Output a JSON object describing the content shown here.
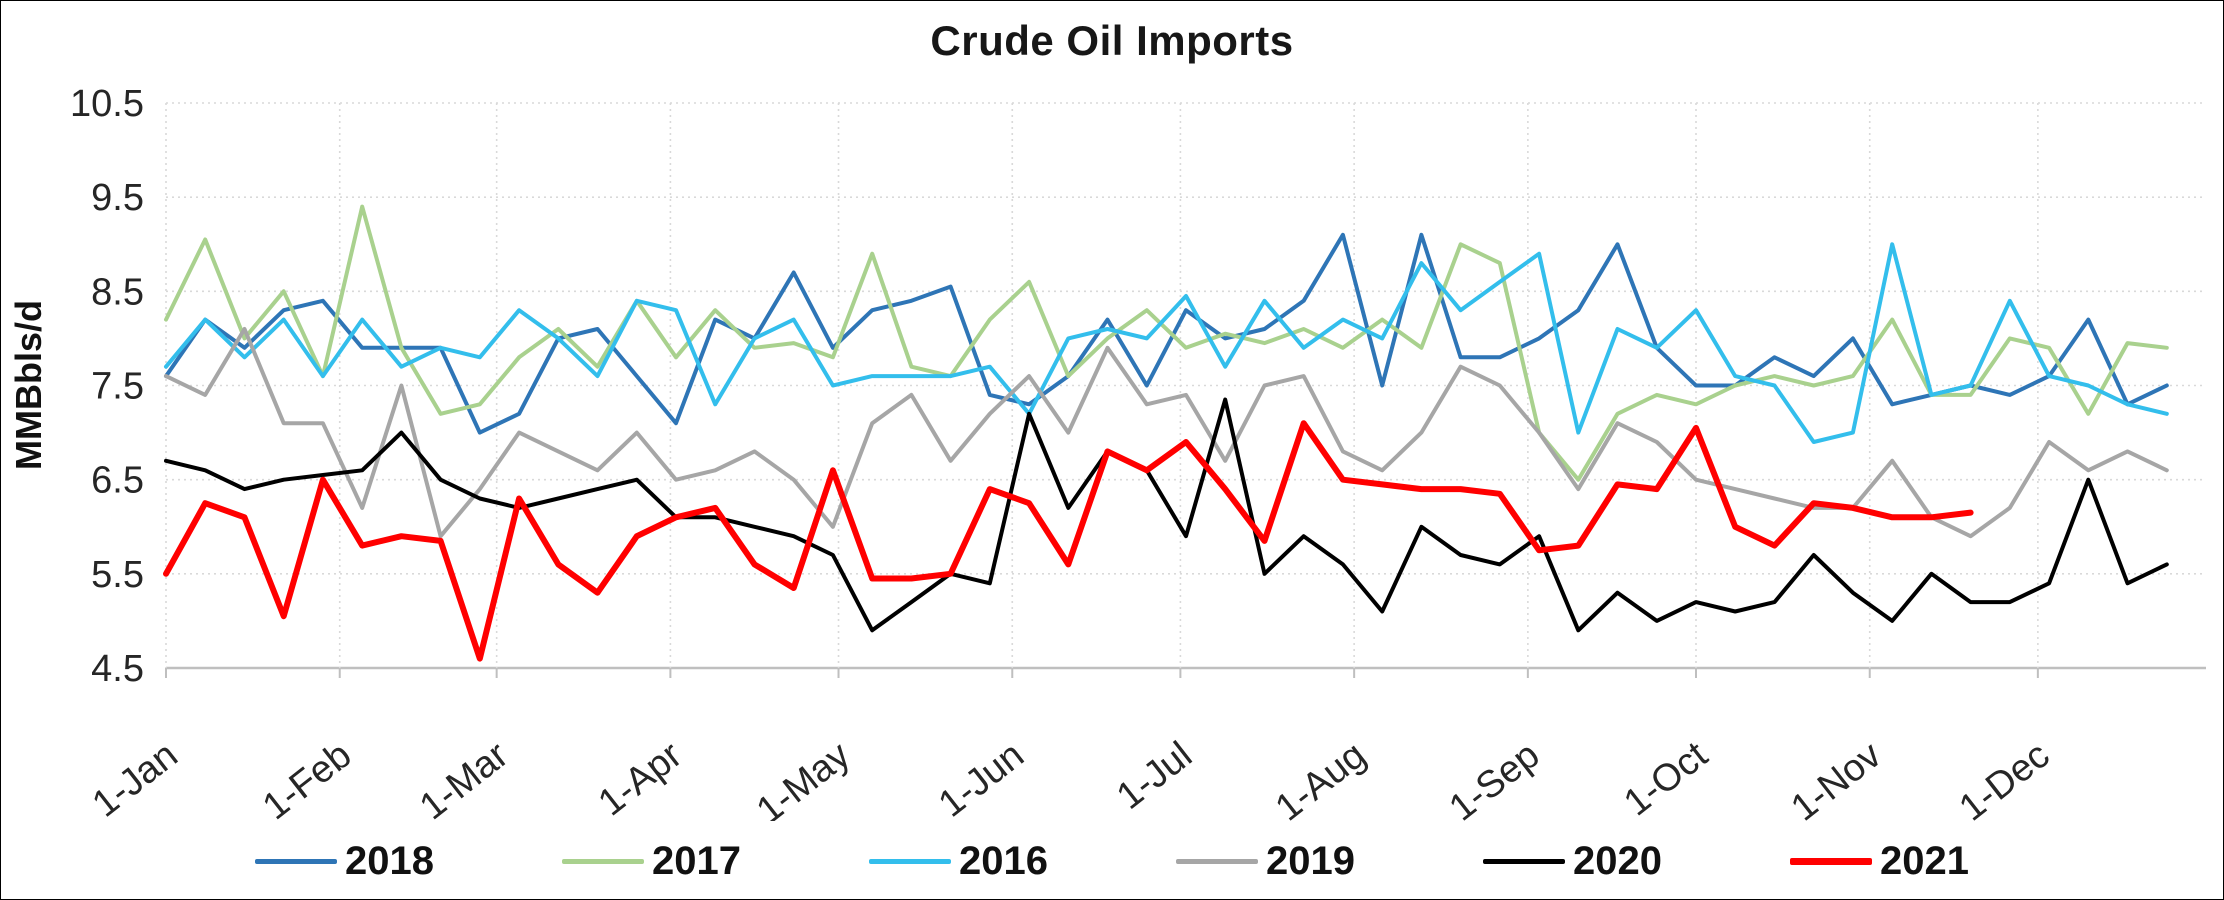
{
  "chart_data": {
    "type": "line",
    "title": "Crude Oil Imports",
    "ylabel": "MMBbls/d",
    "xlabel": "",
    "ylim": [
      4.5,
      10.5
    ],
    "yticks": [
      4.5,
      5.5,
      6.5,
      7.5,
      8.5,
      9.5,
      10.5
    ],
    "ytick_labels": [
      "4.5",
      "5.5",
      "6.5",
      "7.5",
      "8.5",
      "9.5",
      "10.5"
    ],
    "x_tick_labels": [
      "1-Jan",
      "1-Feb",
      "1-Mar",
      "1-Apr",
      "1-May",
      "1-Jun",
      "1-Jul",
      "1-Aug",
      "1-Sep",
      "1-Oct",
      "1-Nov",
      "1-Dec"
    ],
    "x_tick_days": [
      0,
      31,
      59,
      90,
      120,
      151,
      181,
      212,
      243,
      273,
      304,
      334
    ],
    "days_span": 364,
    "points_interval_days": 7,
    "grid": true,
    "gridline_color": "#D9D9D9",
    "axis_line_color": "#BFBFBF",
    "legend_position": "bottom",
    "series": [
      {
        "name": "2018",
        "color": "#2E75B6",
        "width": 4,
        "values": [
          7.6,
          8.2,
          7.9,
          8.3,
          8.4,
          7.9,
          7.9,
          7.9,
          7.0,
          7.2,
          8.0,
          8.1,
          7.6,
          7.1,
          8.2,
          8.0,
          8.7,
          7.9,
          8.3,
          8.4,
          8.55,
          7.4,
          7.3,
          7.6,
          8.2,
          7.5,
          8.3,
          8.0,
          8.1,
          8.4,
          9.1,
          7.5,
          9.1,
          7.8,
          7.8,
          8.0,
          8.3,
          9.0,
          7.9,
          7.5,
          7.5,
          7.8,
          7.6,
          8.0,
          7.3,
          7.4,
          7.5,
          7.4,
          7.6,
          8.2,
          7.3,
          7.5
        ]
      },
      {
        "name": "2017",
        "color": "#A9D18E",
        "width": 4,
        "values": [
          8.2,
          9.05,
          8.0,
          8.5,
          7.6,
          9.4,
          7.9,
          7.2,
          7.3,
          7.8,
          8.1,
          7.7,
          8.4,
          7.8,
          8.3,
          7.9,
          7.95,
          7.8,
          8.9,
          7.7,
          7.6,
          8.2,
          8.6,
          7.6,
          8.0,
          8.3,
          7.9,
          8.05,
          7.95,
          8.1,
          7.9,
          8.2,
          7.9,
          9.0,
          8.8,
          7.0,
          6.5,
          7.2,
          7.4,
          7.3,
          7.5,
          7.6,
          7.5,
          7.6,
          8.2,
          7.4,
          7.4,
          8.0,
          7.9,
          7.2,
          7.95,
          7.9
        ]
      },
      {
        "name": "2016",
        "color": "#33BEEC",
        "width": 4,
        "values": [
          7.7,
          8.2,
          7.8,
          8.2,
          7.6,
          8.2,
          7.7,
          7.9,
          7.8,
          8.3,
          8.0,
          7.6,
          8.4,
          8.3,
          7.3,
          8.0,
          8.2,
          7.5,
          7.6,
          7.6,
          7.6,
          7.7,
          7.2,
          8.0,
          8.1,
          8.0,
          8.45,
          7.7,
          8.4,
          7.9,
          8.2,
          8.0,
          8.8,
          8.3,
          8.6,
          8.9,
          7.0,
          8.1,
          7.9,
          8.3,
          7.6,
          7.5,
          6.9,
          7.0,
          9.0,
          7.4,
          7.5,
          8.4,
          7.6,
          7.5,
          7.3,
          7.2
        ]
      },
      {
        "name": "2019",
        "color": "#A6A6A6",
        "width": 4,
        "values": [
          7.6,
          7.4,
          8.1,
          7.1,
          7.1,
          6.2,
          7.5,
          5.9,
          6.4,
          7.0,
          6.8,
          6.6,
          7.0,
          6.5,
          6.6,
          6.8,
          6.5,
          6.0,
          7.1,
          7.4,
          6.7,
          7.2,
          7.6,
          7.0,
          7.9,
          7.3,
          7.4,
          6.7,
          7.5,
          7.6,
          6.8,
          6.6,
          7.0,
          7.7,
          7.5,
          7.0,
          6.4,
          7.1,
          6.9,
          6.5,
          6.4,
          6.3,
          6.2,
          6.2,
          6.7,
          6.1,
          5.9,
          6.2,
          6.9,
          6.6,
          6.8,
          6.6
        ]
      },
      {
        "name": "2020",
        "color": "#000000",
        "width": 4,
        "values": [
          6.7,
          6.6,
          6.4,
          6.5,
          6.55,
          6.6,
          7.0,
          6.5,
          6.3,
          6.2,
          6.3,
          6.4,
          6.5,
          6.1,
          6.1,
          6.0,
          5.9,
          5.7,
          4.9,
          5.2,
          5.5,
          5.4,
          7.2,
          6.2,
          6.8,
          6.6,
          5.9,
          7.35,
          5.5,
          5.9,
          5.6,
          5.1,
          6.0,
          5.7,
          5.6,
          5.9,
          4.9,
          5.3,
          5.0,
          5.2,
          5.1,
          5.2,
          5.7,
          5.3,
          5.0,
          5.5,
          5.2,
          5.2,
          5.4,
          6.5,
          5.4,
          5.6
        ]
      },
      {
        "name": "2021",
        "color": "#FF0000",
        "width": 6,
        "values": [
          5.5,
          6.25,
          6.1,
          5.05,
          6.5,
          5.8,
          5.9,
          5.85,
          4.6,
          6.3,
          5.6,
          5.3,
          5.9,
          6.1,
          6.2,
          5.6,
          5.35,
          6.6,
          5.45,
          5.45,
          5.5,
          6.4,
          6.25,
          5.6,
          6.8,
          6.6,
          6.9,
          6.4,
          5.85,
          7.1,
          6.5,
          6.45,
          6.4,
          6.4,
          6.35,
          5.75,
          5.8,
          6.45,
          6.4,
          7.05,
          6.0,
          5.8,
          6.25,
          6.2,
          6.1,
          6.1,
          6.15
        ]
      }
    ]
  }
}
